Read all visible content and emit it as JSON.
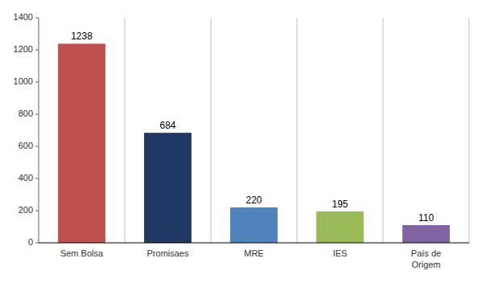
{
  "chart_data": {
    "type": "bar",
    "categories": [
      "Sem Bolsa",
      "Promisaes",
      "MRE",
      "IES",
      "País de\nOrigem"
    ],
    "values": [
      1238,
      684,
      220,
      195,
      110
    ],
    "colors": [
      "#c0504d",
      "#1f3864",
      "#4f81bd",
      "#9bbb59",
      "#8064a2"
    ],
    "ylim": [
      0,
      1400
    ],
    "yticks": [
      0,
      200,
      400,
      600,
      800,
      1000,
      1200,
      1400
    ],
    "data_labels": true
  }
}
